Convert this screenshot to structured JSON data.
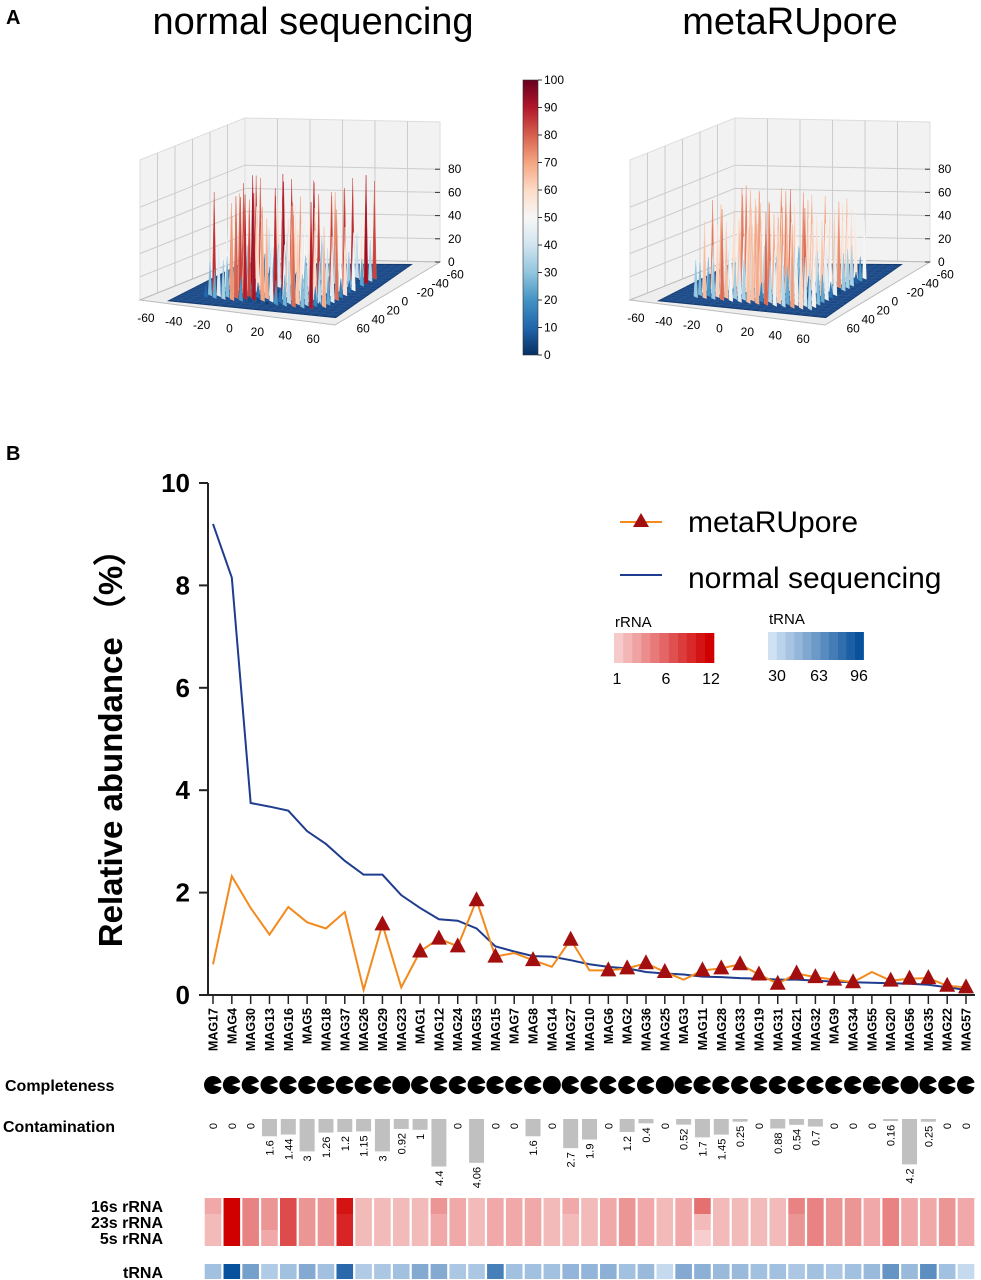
{
  "panel_a": {
    "label": "A",
    "plots": [
      {
        "title": "normal sequencing",
        "style": "spread"
      },
      {
        "title": "metaRUpore",
        "style": "concentrated"
      }
    ],
    "x_ticks": [
      "-60",
      "-40",
      "-20",
      "0",
      "20",
      "40",
      "60"
    ],
    "y_ticks": [
      "-60",
      "-40",
      "-20",
      "0",
      "20",
      "40",
      "60"
    ],
    "z_ticks": [
      "0",
      "20",
      "40",
      "60",
      "80"
    ],
    "colorbar": {
      "min": 0,
      "max": 100,
      "ticks": [
        "0",
        "10",
        "20",
        "30",
        "40",
        "50",
        "60",
        "70",
        "80",
        "90",
        "100"
      ],
      "colormap": "RdBu_r"
    }
  },
  "panel_b": {
    "label": "B"
  },
  "chart_data": {
    "type": "line",
    "ylabel": "Relative abundance （%）",
    "ylim": [
      0,
      10
    ],
    "y_ticks": [
      "0",
      "2",
      "4",
      "6",
      "8",
      "10"
    ],
    "categories": [
      "MAG17",
      "MAG4",
      "MAG30",
      "MAG13",
      "MAG16",
      "MAG5",
      "MAG18",
      "MAG37",
      "MAG26",
      "MAG29",
      "MAG23",
      "MAG1",
      "MAG12",
      "MAG24",
      "MAG53",
      "MAG15",
      "MAG7",
      "MAG8",
      "MAG14",
      "MAG27",
      "MAG10",
      "MAG6",
      "MAG2",
      "MAG36",
      "MAG25",
      "MAG3",
      "MAG11",
      "MAG28",
      "MAG33",
      "MAG19",
      "MAG31",
      "MAG21",
      "MAG32",
      "MAG9",
      "MAG34",
      "MAG55",
      "MAG20",
      "MAG56",
      "MAG35",
      "MAG22",
      "MAG57"
    ],
    "series": [
      {
        "name": "metaRUpore",
        "color": "#f28a1e",
        "marker_color": "#a30f0f",
        "values": [
          0.6,
          2.32,
          1.7,
          1.18,
          1.72,
          1.42,
          1.3,
          1.62,
          0.1,
          1.38,
          0.15,
          0.85,
          1.1,
          0.95,
          1.85,
          0.75,
          0.82,
          0.68,
          0.55,
          1.08,
          0.48,
          0.48,
          0.52,
          0.62,
          0.45,
          0.3,
          0.48,
          0.52,
          0.6,
          0.4,
          0.22,
          0.42,
          0.35,
          0.3,
          0.25,
          0.45,
          0.28,
          0.32,
          0.33,
          0.18,
          0.15
        ],
        "markers": [
          false,
          false,
          false,
          false,
          false,
          false,
          false,
          false,
          false,
          true,
          false,
          true,
          true,
          true,
          true,
          true,
          false,
          true,
          false,
          true,
          false,
          true,
          true,
          true,
          true,
          false,
          true,
          true,
          true,
          true,
          true,
          true,
          true,
          true,
          true,
          false,
          true,
          true,
          true,
          true,
          true
        ]
      },
      {
        "name": "normal sequencing",
        "color": "#1f3c8f",
        "values": [
          9.2,
          8.15,
          3.75,
          3.68,
          3.6,
          3.2,
          2.95,
          2.62,
          2.35,
          2.35,
          1.95,
          1.7,
          1.48,
          1.45,
          1.3,
          0.95,
          0.85,
          0.76,
          0.75,
          0.68,
          0.6,
          0.55,
          0.52,
          0.45,
          0.42,
          0.4,
          0.36,
          0.35,
          0.33,
          0.32,
          0.3,
          0.3,
          0.28,
          0.26,
          0.25,
          0.24,
          0.23,
          0.22,
          0.2,
          0.15,
          0.1
        ]
      }
    ],
    "legend_position": "top-right",
    "completeness": {
      "label": "Completeness",
      "values": [
        93,
        92,
        91,
        92,
        92,
        93,
        93,
        93,
        92,
        94,
        100,
        91,
        92,
        92,
        94,
        92,
        91,
        92,
        100,
        91,
        92,
        90,
        90,
        91,
        100,
        93,
        92,
        91,
        91,
        92,
        92,
        91,
        91,
        90,
        92,
        96,
        92,
        100,
        91,
        92,
        93
      ]
    },
    "contamination": {
      "label": "Contamination",
      "values": [
        0,
        0,
        0,
        1.6,
        1.44,
        3,
        1.26,
        1.2,
        1.15,
        3,
        0.92,
        1,
        4.4,
        0,
        4.06,
        0,
        0,
        1.6,
        0,
        2.7,
        1.9,
        0,
        1.2,
        0.4,
        0,
        0.52,
        1.7,
        1.45,
        0.25,
        0,
        0.88,
        0.54,
        0.7,
        0,
        0,
        0,
        0.16,
        4.2,
        0.25,
        0,
        0
      ],
      "bar_color": "#c0c0c0"
    },
    "rRNA": {
      "legend_title": "rRNA",
      "range": [
        1,
        12
      ],
      "legend_ticks": [
        "1",
        "6",
        "12"
      ],
      "color": "#d00000",
      "rows": [
        {
          "label": "16s rRNA",
          "values": [
            3,
            12,
            5,
            4,
            8,
            4,
            4,
            11,
            2,
            2,
            2,
            2,
            4,
            3,
            2,
            3,
            3,
            3,
            2,
            3,
            2,
            3,
            4,
            3,
            2,
            3,
            6,
            2,
            2,
            2,
            2,
            5,
            5,
            4,
            4,
            3,
            5,
            3,
            3,
            4,
            3
          ]
        },
        {
          "label": "23s rRNA",
          "values": [
            2,
            12,
            5,
            4,
            8,
            4,
            4,
            10,
            2,
            2,
            2,
            2,
            3,
            3,
            2,
            3,
            3,
            3,
            2,
            2,
            2,
            3,
            4,
            3,
            2,
            3,
            2,
            2,
            2,
            2,
            2,
            4,
            5,
            4,
            4,
            3,
            5,
            3,
            3,
            4,
            3
          ]
        },
        {
          "label": "5s rRNA",
          "values": [
            2,
            12,
            5,
            3,
            8,
            4,
            4,
            10,
            2,
            2,
            2,
            2,
            3,
            3,
            2,
            3,
            3,
            3,
            2,
            2,
            2,
            3,
            4,
            3,
            2,
            3,
            1,
            2,
            2,
            2,
            2,
            4,
            5,
            4,
            4,
            3,
            5,
            3,
            3,
            4,
            3
          ]
        }
      ]
    },
    "tRNA": {
      "legend_title": "tRNA",
      "label": "tRNA",
      "range": [
        30,
        96
      ],
      "legend_ticks": [
        "30",
        "63",
        "96"
      ],
      "color": "#08519c",
      "values": [
        45,
        96,
        60,
        40,
        45,
        55,
        45,
        85,
        40,
        42,
        45,
        55,
        55,
        42,
        42,
        75,
        45,
        45,
        45,
        50,
        50,
        52,
        45,
        48,
        33,
        55,
        52,
        48,
        48,
        45,
        45,
        42,
        45,
        42,
        45,
        48,
        65,
        48,
        68,
        45,
        33
      ]
    }
  }
}
